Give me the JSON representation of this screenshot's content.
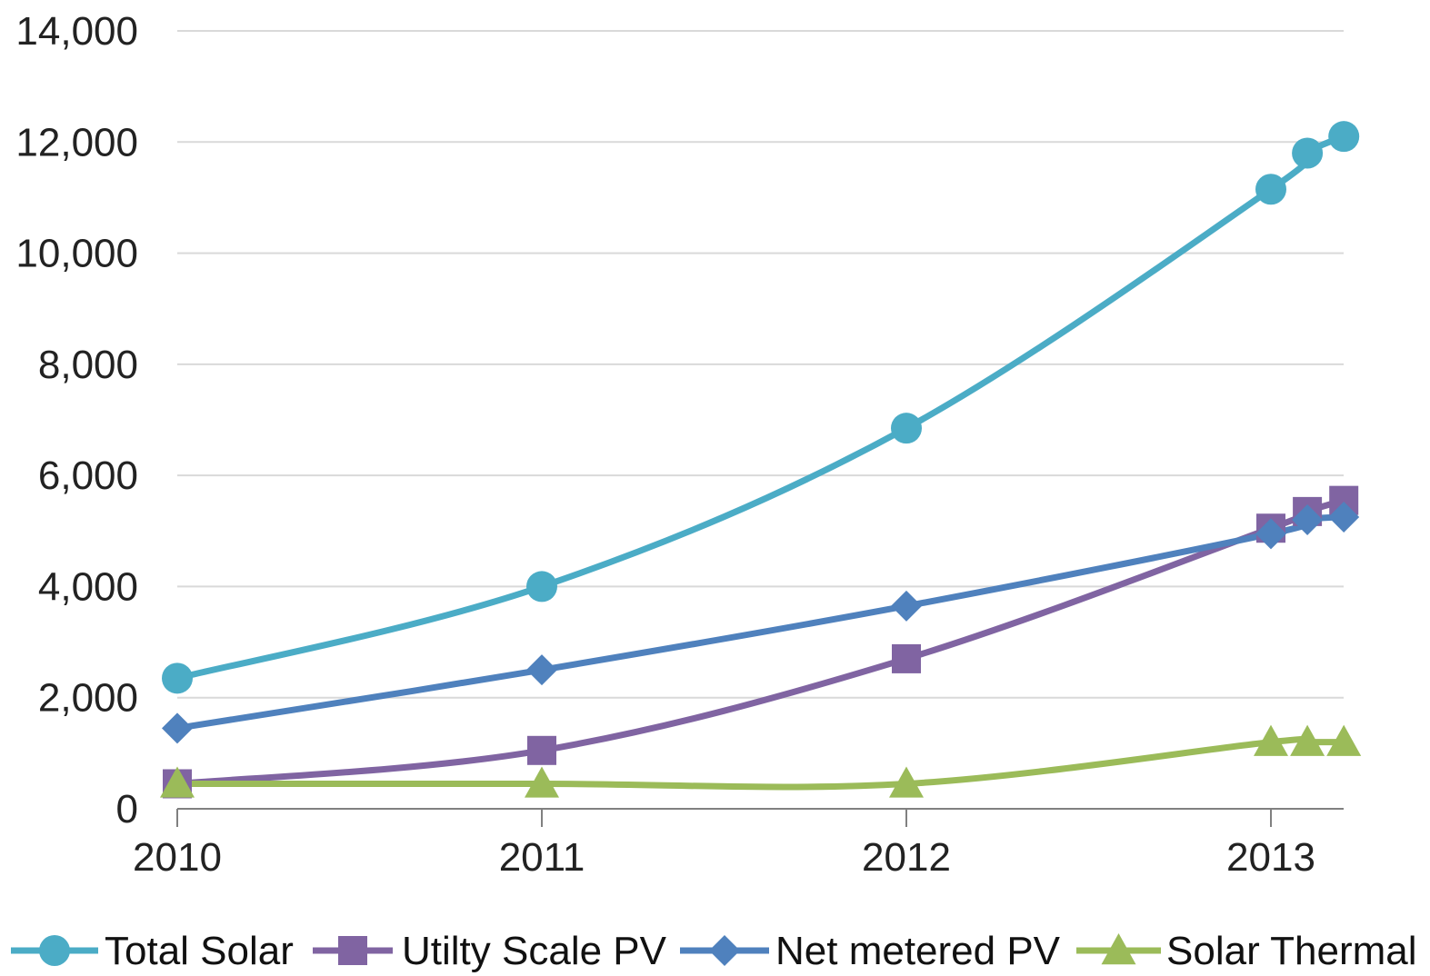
{
  "chart_data": {
    "type": "line",
    "title": "",
    "xlabel": "",
    "ylabel": "",
    "ylim": [
      0,
      14000
    ],
    "xlim": [
      2010,
      2013.2
    ],
    "grid": true,
    "legend_position": "bottom",
    "y_ticks": [
      {
        "value": 0,
        "label": "0"
      },
      {
        "value": 2000,
        "label": "2,000"
      },
      {
        "value": 4000,
        "label": "4,000"
      },
      {
        "value": 6000,
        "label": "6,000"
      },
      {
        "value": 8000,
        "label": "8,000"
      },
      {
        "value": 10000,
        "label": "10,000"
      },
      {
        "value": 12000,
        "label": "12,000"
      },
      {
        "value": 14000,
        "label": "14,000"
      }
    ],
    "x_ticks": [
      {
        "value": 2010,
        "label": "2010"
      },
      {
        "value": 2011,
        "label": "2011"
      },
      {
        "value": 2012,
        "label": "2012"
      },
      {
        "value": 2013,
        "label": "2013"
      }
    ],
    "x": [
      2010,
      2011,
      2012,
      2013,
      2013.1,
      2013.2
    ],
    "series": [
      {
        "name": "Total Solar",
        "color": "#4BACC6",
        "marker": "circle",
        "values": [
          2350,
          4000,
          6850,
          11150,
          11800,
          12100
        ]
      },
      {
        "name": "Utilty Scale PV",
        "color": "#8064A2",
        "marker": "square",
        "values": [
          450,
          1050,
          2700,
          5050,
          5350,
          5550
        ]
      },
      {
        "name": "Net metered PV",
        "color": "#4F81BD",
        "marker": "diamond",
        "values": [
          1450,
          2500,
          3650,
          4950,
          5200,
          5250
        ]
      },
      {
        "name": "Solar Thermal",
        "color": "#9BBB59",
        "marker": "triangle",
        "values": [
          450,
          450,
          450,
          1200,
          1200,
          1200
        ]
      }
    ]
  }
}
